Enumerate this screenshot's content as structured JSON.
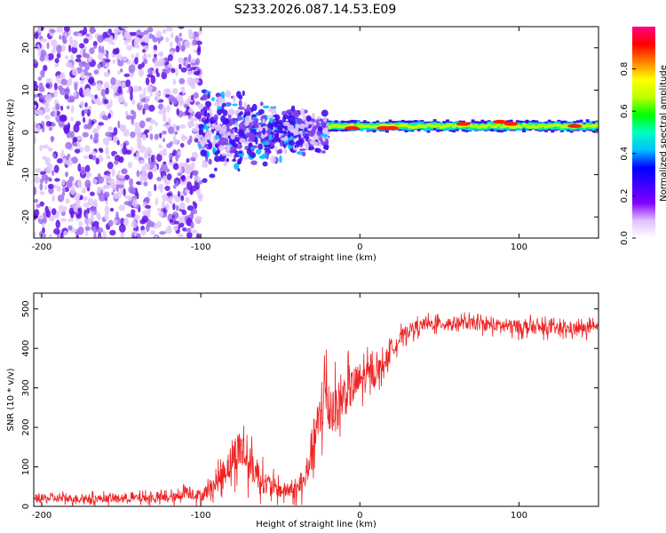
{
  "title": "S233.2026.087.14.53.E09",
  "chart_data": [
    {
      "type": "heatmap",
      "name": "spectrogram",
      "xlabel": "Height of straight line (km)",
      "ylabel": "Frequency (Hz)",
      "xlim": [
        -205,
        150
      ],
      "ylim": [
        -25,
        25
      ],
      "xticks": [
        -200,
        -100,
        0,
        100
      ],
      "yticks": [
        -20,
        -10,
        0,
        10,
        20
      ],
      "colorbar": {
        "label": "Normalized spectral amplitude",
        "ticks": [
          0.0,
          0.2,
          0.4,
          0.6,
          0.8
        ],
        "range": [
          0,
          1
        ],
        "colors": [
          "#ffffff",
          "#e0c0ff",
          "#8000ff",
          "#4000ff",
          "#0000ff",
          "#00c0ff",
          "#00ffc0",
          "#00ff00",
          "#c0ff00",
          "#ffff00",
          "#ff8000",
          "#ff0000",
          "#ff0080"
        ]
      },
      "regions": [
        {
          "description": "scattered noise",
          "x_range": [
            -205,
            -100
          ],
          "freq_range": [
            -25,
            25
          ],
          "amplitude": 0.2
        },
        {
          "description": "transition",
          "x_range": [
            -100,
            -20
          ],
          "freq_range": [
            -12,
            12
          ],
          "amplitude": 0.3
        },
        {
          "description": "narrow band signal",
          "x_range": [
            -20,
            150
          ],
          "freq_center": 1.5,
          "freq_halfwidth": 1.2,
          "amplitude": 0.9
        }
      ],
      "peaks": [
        {
          "x": -5,
          "freq": 1,
          "amp": 0.9
        },
        {
          "x": 15,
          "freq": 1,
          "amp": 0.9
        },
        {
          "x": 20,
          "freq": 1,
          "amp": 0.85
        },
        {
          "x": 65,
          "freq": 2,
          "amp": 0.9
        },
        {
          "x": 88,
          "freq": 2.5,
          "amp": 0.95
        },
        {
          "x": 95,
          "freq": 2,
          "amp": 0.85
        },
        {
          "x": 135,
          "freq": 1.5,
          "amp": 0.9
        }
      ]
    },
    {
      "type": "line",
      "name": "snr",
      "xlabel": "Height of straight line (km)",
      "ylabel": "SNR (10 * v/v)",
      "xlim": [
        -205,
        150
      ],
      "ylim": [
        0,
        540
      ],
      "xticks": [
        -200,
        -100,
        0,
        100
      ],
      "yticks": [
        0,
        100,
        200,
        300,
        400,
        500
      ],
      "color": "#ee2222",
      "series": [
        {
          "name": "SNR",
          "x": [
            -205,
            -150,
            -115,
            -110,
            -100,
            -90,
            -80,
            -75,
            -70,
            -60,
            -50,
            -40,
            -35,
            -30,
            -25,
            -22,
            -20,
            -15,
            -10,
            0,
            10,
            15,
            20,
            30,
            40,
            60,
            80,
            100,
            120,
            150
          ],
          "y": [
            20,
            20,
            22,
            40,
            25,
            60,
            120,
            150,
            110,
            60,
            40,
            40,
            60,
            150,
            220,
            300,
            250,
            250,
            280,
            320,
            340,
            360,
            400,
            445,
            460,
            465,
            460,
            455,
            450,
            450
          ],
          "spread": [
            20,
            20,
            25,
            35,
            30,
            50,
            90,
            110,
            90,
            60,
            40,
            40,
            60,
            110,
            140,
            170,
            140,
            120,
            110,
            90,
            60,
            50,
            40,
            35,
            30,
            30,
            30,
            35,
            30,
            30
          ]
        }
      ]
    }
  ]
}
